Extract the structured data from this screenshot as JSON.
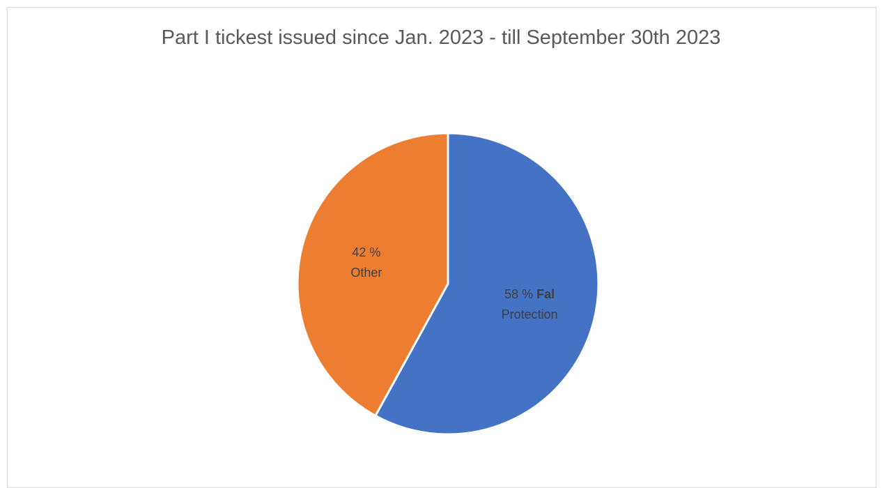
{
  "chart_data": {
    "type": "pie",
    "title": "Part I tickest issued since Jan. 2023 - till September 30th 2023",
    "categories": [
      "Fal Protection",
      "Other"
    ],
    "values": [
      58,
      42
    ],
    "unit": "%",
    "colors": [
      "#4472c4",
      "#ed7d31"
    ],
    "labels": [
      {
        "value_text": "58 %",
        "name_bold": "Fal",
        "name_rest": "Protection"
      },
      {
        "value_text": "42 %",
        "name_bold": "",
        "name_rest": "Other"
      }
    ],
    "legend": "none"
  }
}
